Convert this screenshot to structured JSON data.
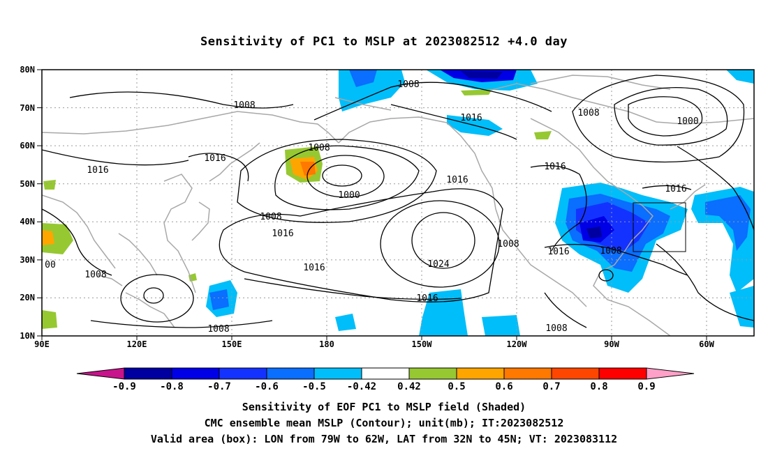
{
  "title": "Sensitivity of PC1 to MSLP at 2023082512 +4.0 day",
  "map": {
    "lat_labels": [
      "80N",
      "70N",
      "60N",
      "50N",
      "40N",
      "30N",
      "20N",
      "10N"
    ],
    "lon_labels": [
      "90E",
      "120E",
      "150E",
      "180",
      "150W",
      "120W",
      "90W",
      "60W"
    ],
    "contour_labels": [
      "1008",
      "1008",
      "1016",
      "1016",
      "1008",
      "1016",
      "1016",
      "1008",
      "1000",
      "1016",
      "1008",
      "1016",
      "1016",
      "1024",
      "1008",
      "1016",
      "1016",
      "1008",
      "1016",
      "1008",
      "1000",
      "1008",
      "00"
    ],
    "valid_box": {
      "lon_range": "79W to 62W",
      "lat_range": "32N to 45N"
    }
  },
  "colorbar": {
    "labels": [
      "-0.9",
      "-0.8",
      "-0.7",
      "-0.6",
      "-0.5",
      "-0.42",
      "0.42",
      "0.5",
      "0.6",
      "0.7",
      "0.8",
      "0.9"
    ],
    "colors": [
      "#0000a0",
      "#0000e6",
      "#1432ff",
      "#0a6eff",
      "#00befa",
      "#ffffff",
      "#96c832",
      "#ffa500",
      "#ff7800",
      "#ff4600",
      "#ff0000"
    ],
    "low_end_color": "#c8148c",
    "high_end_color": "#ffa0c8"
  },
  "captions": {
    "line1": "Sensitivity of EOF PC1 to MSLP field (Shaded)",
    "line2": "CMC ensemble mean MSLP (Contour); unit(mb); IT:2023082512",
    "line3": "Valid area (box): LON from 79W to 62W, LAT from 32N to 45N; VT: 2023083112"
  }
}
